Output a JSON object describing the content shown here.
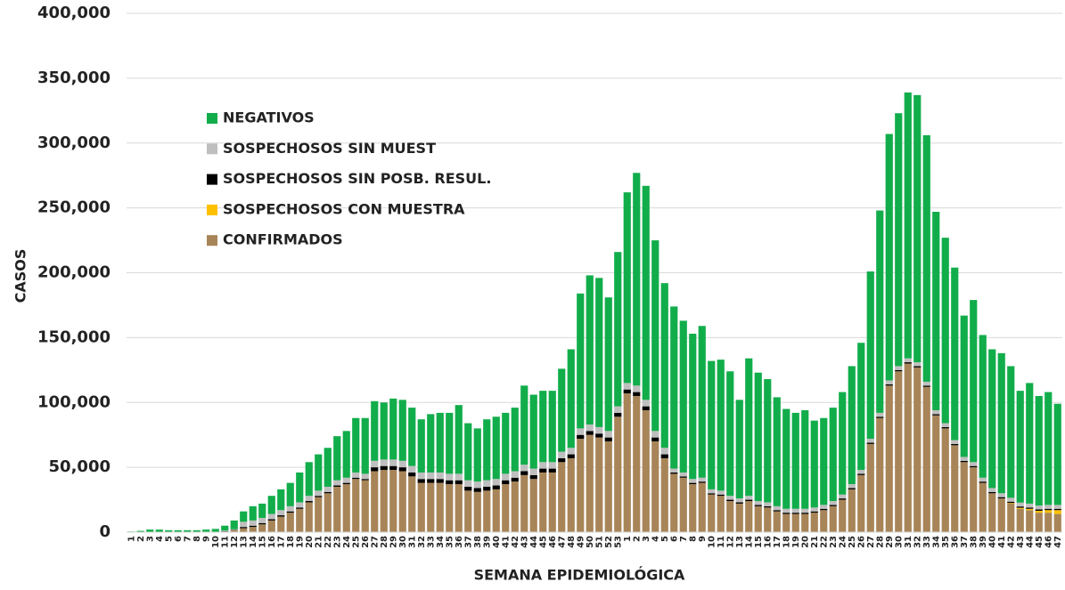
{
  "chart_data": {
    "type": "stacked_bar",
    "y_label": "CASOS",
    "x_label": "SEMANA EPIDEMIOLÓGICA",
    "categories": [
      "1",
      "2",
      "3",
      "4",
      "5",
      "6",
      "7",
      "8",
      "9",
      "10",
      "11",
      "12",
      "13",
      "14",
      "15",
      "16",
      "17",
      "18",
      "19",
      "20",
      "21",
      "22",
      "23",
      "24",
      "25",
      "26",
      "27",
      "28",
      "29",
      "30",
      "31",
      "32",
      "33",
      "34",
      "35",
      "36",
      "37",
      "38",
      "39",
      "40",
      "41",
      "42",
      "43",
      "44",
      "45",
      "46",
      "47",
      "48",
      "49",
      "50",
      "51",
      "52",
      "53",
      "1",
      "2",
      "3",
      "4",
      "5",
      "6",
      "7",
      "8",
      "9",
      "10",
      "11",
      "12",
      "13",
      "14",
      "15",
      "16",
      "17",
      "18",
      "19",
      "20",
      "21",
      "22",
      "23",
      "24",
      "25",
      "26",
      "27",
      "28",
      "29",
      "30",
      "31",
      "32",
      "33",
      "34",
      "35",
      "36",
      "37",
      "38",
      "39",
      "40",
      "41",
      "42",
      "43",
      "44",
      "45",
      "46",
      "47"
    ],
    "series": [
      {
        "name": "CONFIRMADOS",
        "color": "#a88558",
        "values": [
          0,
          0,
          0,
          0,
          0,
          0,
          0,
          0,
          0,
          100,
          500,
          1500,
          3000,
          4000,
          6000,
          9000,
          12000,
          15000,
          18000,
          23000,
          27000,
          30000,
          35000,
          37000,
          41000,
          40000,
          47000,
          48000,
          48000,
          47000,
          43000,
          38000,
          38000,
          38000,
          37000,
          37000,
          32000,
          31000,
          32000,
          33000,
          37000,
          39000,
          44000,
          41000,
          46000,
          46000,
          54000,
          57000,
          72000,
          75000,
          73000,
          70000,
          89000,
          107000,
          105000,
          94000,
          70000,
          57000,
          45000,
          42000,
          37000,
          38000,
          29000,
          28000,
          24000,
          22000,
          24000,
          20000,
          19000,
          16000,
          14000,
          14000,
          14000,
          15000,
          17000,
          20000,
          25000,
          33000,
          44000,
          68000,
          88000,
          113000,
          124000,
          130000,
          127000,
          112000,
          90000,
          80000,
          67000,
          54000,
          50000,
          38000,
          30000,
          26000,
          22000,
          18000,
          17000,
          15000,
          15000,
          14000
        ]
      },
      {
        "name": "SOSPECHOSOS CON MUESTRA",
        "color": "#ffc000",
        "values": [
          0,
          0,
          0,
          0,
          0,
          0,
          0,
          0,
          0,
          0,
          0,
          0,
          0,
          0,
          0,
          0,
          0,
          0,
          0,
          0,
          0,
          0,
          0,
          0,
          0,
          0,
          0,
          0,
          0,
          0,
          0,
          0,
          0,
          0,
          0,
          0,
          0,
          0,
          0,
          0,
          0,
          0,
          0,
          0,
          0,
          0,
          0,
          0,
          0,
          0,
          0,
          0,
          0,
          0,
          0,
          0,
          0,
          0,
          0,
          0,
          0,
          0,
          0,
          0,
          0,
          0,
          0,
          0,
          0,
          0,
          0,
          0,
          0,
          0,
          0,
          0,
          0,
          0,
          0,
          0,
          0,
          0,
          0,
          0,
          0,
          0,
          0,
          0,
          0,
          0,
          0,
          0,
          0,
          0,
          500,
          800,
          1000,
          1500,
          2000,
          3000
        ]
      },
      {
        "name": "SOSPECHOSOS SIN POSB. RESUL.",
        "color": "#000000",
        "values": [
          0,
          0,
          0,
          0,
          0,
          0,
          0,
          0,
          0,
          0,
          200,
          200,
          1000,
          1000,
          1000,
          1000,
          1000,
          1000,
          1000,
          1000,
          1000,
          1000,
          1000,
          1000,
          1000,
          1000,
          3000,
          3000,
          3000,
          3000,
          3000,
          3000,
          3000,
          3000,
          3000,
          3000,
          3000,
          3000,
          3000,
          3000,
          3000,
          3000,
          3000,
          3000,
          3000,
          3000,
          3000,
          3000,
          3000,
          3000,
          3000,
          3000,
          3000,
          3000,
          3000,
          3000,
          3000,
          3000,
          1000,
          1000,
          1000,
          1000,
          1000,
          1000,
          1000,
          1000,
          1000,
          1000,
          1000,
          1000,
          1000,
          1000,
          1000,
          1000,
          1000,
          1000,
          1000,
          1000,
          1000,
          1000,
          1000,
          1000,
          1000,
          1000,
          1000,
          1000,
          1000,
          1000,
          1000,
          1000,
          1000,
          1000,
          1000,
          1000,
          1000,
          1000,
          1000,
          1000,
          1000,
          1000
        ]
      },
      {
        "name": "SOSPECHOSOS SIN MUEST",
        "color": "#bfbfbf",
        "values": [
          0,
          0,
          0,
          0,
          0,
          0,
          0,
          0,
          0,
          0,
          500,
          500,
          4000,
          4000,
          4000,
          4000,
          4000,
          4000,
          4000,
          4000,
          4000,
          4000,
          4000,
          4000,
          4000,
          4000,
          5000,
          5000,
          5000,
          5000,
          5000,
          5000,
          5000,
          5000,
          5000,
          5000,
          5000,
          5000,
          5000,
          5000,
          5000,
          5000,
          5000,
          5000,
          5000,
          5000,
          5000,
          5000,
          5000,
          5000,
          5000,
          5000,
          5000,
          5000,
          5000,
          5000,
          5000,
          5000,
          3000,
          3000,
          3000,
          3000,
          3000,
          3000,
          3000,
          3000,
          3000,
          3000,
          3000,
          3000,
          3000,
          3000,
          3000,
          3000,
          3000,
          3000,
          3000,
          3000,
          3000,
          3000,
          3000,
          3000,
          3000,
          3000,
          3000,
          3000,
          3000,
          3000,
          3000,
          3000,
          3000,
          3000,
          3000,
          3000,
          3000,
          3000,
          3000,
          3000,
          3000,
          3000
        ]
      },
      {
        "name": "NEGATIVOS",
        "color": "#12ad4b",
        "values": [
          500,
          1000,
          2000,
          2000,
          1500,
          1500,
          1500,
          1500,
          2000,
          2400,
          3800,
          6800,
          8000,
          11000,
          11000,
          14000,
          16000,
          18000,
          23000,
          26000,
          28000,
          30000,
          34000,
          36000,
          42000,
          43000,
          46000,
          44000,
          47000,
          47000,
          45000,
          41000,
          45000,
          46000,
          47000,
          53000,
          44000,
          41000,
          47000,
          48000,
          47000,
          49000,
          61000,
          57000,
          55000,
          55000,
          64000,
          76000,
          104000,
          115000,
          115000,
          103000,
          119000,
          147000,
          164000,
          165000,
          147000,
          127000,
          125000,
          117000,
          112000,
          117000,
          99000,
          101000,
          96000,
          76000,
          106000,
          99000,
          95000,
          84000,
          77000,
          74000,
          76000,
          67000,
          67000,
          72000,
          79000,
          91000,
          98000,
          129000,
          156000,
          190000,
          195000,
          205000,
          206000,
          190000,
          153000,
          143000,
          133000,
          109000,
          125000,
          110000,
          107000,
          108000,
          101500,
          86200,
          93000,
          84500,
          87000,
          78000
        ]
      }
    ],
    "ylim": [
      0,
      400000
    ],
    "yticks": [
      {
        "value": 0,
        "label": "0"
      },
      {
        "value": 50000,
        "label": "50,000"
      },
      {
        "value": 100000,
        "label": "100,000"
      },
      {
        "value": 150000,
        "label": "150,000"
      },
      {
        "value": 200000,
        "label": "200,000"
      },
      {
        "value": 250000,
        "label": "250,000"
      },
      {
        "value": 300000,
        "label": "300,000"
      },
      {
        "value": 350000,
        "label": "350,000"
      },
      {
        "value": 400000,
        "label": "400,000"
      }
    ],
    "grid": true
  }
}
